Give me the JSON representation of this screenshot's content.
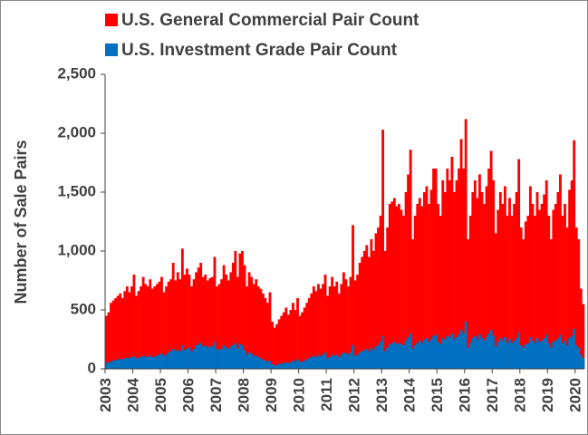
{
  "chart_data": {
    "type": "bar",
    "y_label": "Number of Sale Pairs",
    "categories": [
      "2003",
      null,
      null,
      null,
      null,
      null,
      null,
      null,
      null,
      null,
      null,
      null,
      "2004",
      null,
      null,
      null,
      null,
      null,
      null,
      null,
      null,
      null,
      null,
      null,
      "2005",
      null,
      null,
      null,
      null,
      null,
      null,
      null,
      null,
      null,
      null,
      null,
      "2006",
      null,
      null,
      null,
      null,
      null,
      null,
      null,
      null,
      null,
      null,
      null,
      "2007",
      null,
      null,
      null,
      null,
      null,
      null,
      null,
      null,
      null,
      null,
      null,
      "2008",
      null,
      null,
      null,
      null,
      null,
      null,
      null,
      null,
      null,
      null,
      null,
      "2009",
      null,
      null,
      null,
      null,
      null,
      null,
      null,
      null,
      null,
      null,
      null,
      "2010",
      null,
      null,
      null,
      null,
      null,
      null,
      null,
      null,
      null,
      null,
      null,
      "2011",
      null,
      null,
      null,
      null,
      null,
      null,
      null,
      null,
      null,
      null,
      null,
      "2012",
      null,
      null,
      null,
      null,
      null,
      null,
      null,
      null,
      null,
      null,
      null,
      "2013",
      null,
      null,
      null,
      null,
      null,
      null,
      null,
      null,
      null,
      null,
      null,
      "2014",
      null,
      null,
      null,
      null,
      null,
      null,
      null,
      null,
      null,
      null,
      null,
      "2015",
      null,
      null,
      null,
      null,
      null,
      null,
      null,
      null,
      null,
      null,
      null,
      "2016",
      null,
      null,
      null,
      null,
      null,
      null,
      null,
      null,
      null,
      null,
      null,
      "2017",
      null,
      null,
      null,
      null,
      null,
      null,
      null,
      null,
      null,
      null,
      null,
      "2018",
      null,
      null,
      null,
      null,
      null,
      null,
      null,
      null,
      null,
      null,
      null,
      "2019",
      null,
      null,
      null,
      null,
      null,
      null,
      null,
      null,
      null,
      null,
      null,
      "2020",
      null,
      null,
      null
    ],
    "series": [
      {
        "name": "U.S. General Commercial Pair Count",
        "color": "#ff0000",
        "values": [
          450,
          480,
          560,
          580,
          600,
          620,
          640,
          600,
          660,
          700,
          650,
          700,
          800,
          620,
          660,
          700,
          780,
          720,
          700,
          760,
          680,
          700,
          720,
          740,
          780,
          650,
          700,
          740,
          760,
          900,
          750,
          820,
          760,
          1020,
          800,
          850,
          800,
          700,
          760,
          820,
          860,
          900,
          780,
          800,
          750,
          770,
          780,
          950,
          700,
          720,
          760,
          880,
          800,
          750,
          820,
          900,
          1000,
          780,
          980,
          1000,
          880,
          700,
          820,
          780,
          720,
          760,
          700,
          680,
          640,
          600,
          560,
          650,
          400,
          350,
          380,
          420,
          450,
          480,
          520,
          460,
          500,
          560,
          500,
          600,
          450,
          480,
          520,
          560,
          600,
          640,
          700,
          660,
          720,
          680,
          720,
          800,
          620,
          700,
          780,
          700,
          740,
          640,
          720,
          820,
          760,
          700,
          780,
          1220,
          750,
          800,
          900,
          950,
          1000,
          1050,
          950,
          1100,
          1000,
          1150,
          1200,
          1300,
          2030,
          1000,
          1200,
          1400,
          1420,
          1450,
          1380,
          1400,
          1350,
          1300,
          1500,
          1650,
          1860,
          1100,
          1300,
          1400,
          1450,
          1380,
          1500,
          1550,
          1400,
          1520,
          1700,
          1700,
          1400,
          1300,
          1600,
          1500,
          1700,
          1600,
          1800,
          1500,
          1600,
          1700,
          1950,
          1700,
          2120,
          1100,
          1300,
          1500,
          1600,
          1450,
          1650,
          1500,
          1400,
          1550,
          1700,
          1850,
          1600,
          1150,
          1350,
          1500,
          1400,
          1550,
          1300,
          1450,
          1300,
          1400,
          1500,
          1780,
          1200,
          1100,
          1250,
          1300,
          1550,
          1400,
          1300,
          1500,
          1350,
          1400,
          1480,
          1600,
          1300,
          1100,
          1350,
          1400,
          1500,
          1650,
          1300,
          1400,
          1200,
          1520,
          1600,
          1940,
          1200,
          1100,
          680,
          550
        ]
      },
      {
        "name": "U.S. Investment Grade Pair Count",
        "color": "#0070c0",
        "values": [
          50,
          55,
          60,
          70,
          75,
          80,
          85,
          80,
          90,
          95,
          90,
          100,
          110,
          90,
          95,
          100,
          110,
          105,
          100,
          115,
          100,
          105,
          110,
          120,
          130,
          110,
          120,
          140,
          150,
          170,
          150,
          160,
          150,
          200,
          160,
          170,
          180,
          150,
          170,
          200,
          210,
          220,
          190,
          200,
          180,
          190,
          190,
          230,
          170,
          160,
          170,
          200,
          180,
          170,
          190,
          200,
          220,
          170,
          210,
          200,
          160,
          120,
          140,
          130,
          110,
          110,
          100,
          90,
          80,
          70,
          60,
          70,
          40,
          30,
          35,
          40,
          45,
          50,
          55,
          50,
          55,
          70,
          60,
          80,
          60,
          60,
          70,
          80,
          90,
          100,
          110,
          100,
          120,
          110,
          120,
          140,
          90,
          100,
          120,
          110,
          120,
          100,
          120,
          140,
          130,
          120,
          140,
          200,
          110,
          120,
          140,
          150,
          160,
          170,
          150,
          180,
          160,
          190,
          200,
          230,
          280,
          150,
          180,
          210,
          220,
          230,
          210,
          220,
          210,
          200,
          240,
          270,
          300,
          170,
          200,
          220,
          240,
          220,
          250,
          260,
          230,
          250,
          280,
          290,
          230,
          210,
          260,
          250,
          280,
          270,
          300,
          250,
          270,
          290,
          330,
          300,
          400,
          180,
          220,
          260,
          280,
          250,
          290,
          260,
          240,
          270,
          300,
          330,
          280,
          190,
          230,
          260,
          240,
          270,
          220,
          250,
          220,
          240,
          260,
          310,
          200,
          180,
          210,
          220,
          270,
          240,
          220,
          260,
          230,
          240,
          260,
          290,
          220,
          180,
          230,
          240,
          260,
          290,
          220,
          240,
          200,
          260,
          280,
          340,
          200,
          180,
          120,
          90
        ]
      }
    ],
    "ylim": [
      0,
      2500
    ],
    "yticks": [
      0,
      {
        "value": 500,
        "label": "500"
      },
      {
        "value": 1000,
        "label": "1,000"
      },
      {
        "value": 1500,
        "label": "1,500"
      },
      {
        "value": 2000,
        "label": "2,000"
      },
      {
        "value": 2500,
        "label": "2,500"
      }
    ],
    "grid": false
  }
}
